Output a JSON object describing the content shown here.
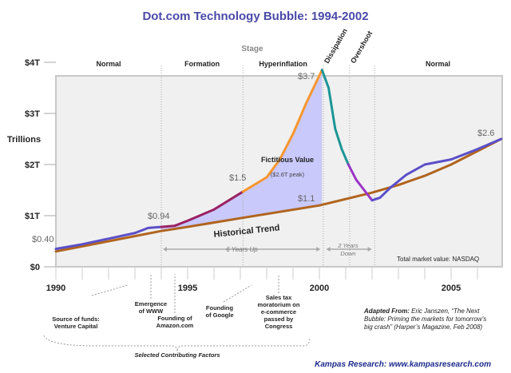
{
  "chart_data": {
    "type": "line",
    "title": "Dot.com Technology Bubble:  1994-2002",
    "ylabel": "Trillions",
    "stage_label": "Stage",
    "ylim": [
      0,
      4
    ],
    "xlim": [
      1990,
      2006.9
    ],
    "y_ticks": [
      {
        "v": 0,
        "label": "$0"
      },
      {
        "v": 1,
        "label": "$1T"
      },
      {
        "v": 2,
        "label": "$2T"
      },
      {
        "v": 3,
        "label": "$3T"
      },
      {
        "v": 4,
        "label": "$4T"
      }
    ],
    "x_ticks": [
      {
        "v": 1990,
        "label": "1990"
      },
      {
        "v": 1995,
        "label": "1995"
      },
      {
        "v": 2000,
        "label": "2000"
      },
      {
        "v": 2005,
        "label": "2005"
      }
    ],
    "stages": [
      {
        "label": "Normal",
        "from": 1990,
        "to": 1994,
        "rotated": false
      },
      {
        "label": "Formation",
        "from": 1994,
        "to": 1997.1,
        "rotated": false
      },
      {
        "label": "Hyperinflation",
        "from": 1997.1,
        "to": 2000.15,
        "rotated": false
      },
      {
        "label": "Dissipation",
        "from": 2000.15,
        "to": 2001.15,
        "rotated": true
      },
      {
        "label": "Overshoot",
        "from": 2001.15,
        "to": 2002.1,
        "rotated": true
      },
      {
        "label": "Normal",
        "from": 2002.1,
        "to": 2006.9,
        "rotated": false
      }
    ],
    "series": [
      {
        "name": "Total market value: NASDAQ",
        "segments": [
          {
            "color": "#5b4fc8",
            "points": [
              [
                1990,
                0.35
              ],
              [
                1991,
                0.44
              ],
              [
                1992,
                0.55
              ],
              [
                1993,
                0.66
              ],
              [
                1993.5,
                0.76
              ],
              [
                1994,
                0.78
              ]
            ]
          },
          {
            "color": "#9b2163",
            "points": [
              [
                1994,
                0.78
              ],
              [
                1994.5,
                0.8
              ],
              [
                1995,
                0.9
              ],
              [
                1996,
                1.12
              ],
              [
                1997.1,
                1.47
              ]
            ]
          },
          {
            "color": "#f7962e",
            "points": [
              [
                1997.1,
                1.47
              ],
              [
                1998,
                1.75
              ],
              [
                1998.5,
                2.1
              ],
              [
                1999,
                2.6
              ],
              [
                1999.5,
                3.2
              ],
              [
                2000.1,
                3.85
              ]
            ]
          },
          {
            "color": "#1b9596",
            "points": [
              [
                2000.1,
                3.85
              ],
              [
                2000.35,
                3.5
              ],
              [
                2000.6,
                2.7
              ],
              [
                2000.85,
                2.3
              ],
              [
                2001.1,
                2.0
              ]
            ]
          },
          {
            "color": "#9a35c6",
            "points": [
              [
                2001.1,
                2.0
              ],
              [
                2001.4,
                1.7
              ],
              [
                2001.7,
                1.5
              ],
              [
                2002,
                1.3
              ]
            ]
          },
          {
            "color": "#5b4fc8",
            "points": [
              [
                2002,
                1.3
              ],
              [
                2002.3,
                1.35
              ],
              [
                2002.7,
                1.55
              ],
              [
                2003.3,
                1.8
              ],
              [
                2004,
                2.0
              ],
              [
                2005,
                2.1
              ],
              [
                2006,
                2.3
              ],
              [
                2006.9,
                2.5
              ]
            ]
          }
        ]
      },
      {
        "name": "Historical Trend",
        "color": "#b0641e",
        "points": [
          [
            1990,
            0.3
          ],
          [
            1992,
            0.5
          ],
          [
            1994,
            0.7
          ],
          [
            1995,
            0.78
          ],
          [
            1997,
            0.95
          ],
          [
            2000,
            1.2
          ],
          [
            2002,
            1.45
          ],
          [
            2003,
            1.6
          ],
          [
            2004,
            1.78
          ],
          [
            2005,
            2.0
          ],
          [
            2006.9,
            2.5
          ]
        ]
      }
    ],
    "fill": {
      "label": "Fictitious Value",
      "sub": "($2.6T peak)",
      "color": "#c9c9fb",
      "from": 1994,
      "to": 2000.1
    },
    "annotations": {
      "v040": "$0.40",
      "v094": "$0.94",
      "v15": "$1.5",
      "v37": "$3.7",
      "v11": "$1.1",
      "v26": "$2.6",
      "trend_label": "Historical Trend",
      "up": "6 Years Up",
      "down_1": "2 Years",
      "down_2": "Down",
      "market": "Total market value: NASDAQ"
    },
    "factors": {
      "vc": [
        "Source of funds:",
        "Venture Capital"
      ],
      "www": [
        "Emergence",
        "of WWW"
      ],
      "amazon": [
        "Founding of",
        "Amazon.com"
      ],
      "google": [
        "Founding",
        "of Google"
      ],
      "tax": [
        "Sales tax",
        "moratorium on",
        "e-commerce",
        "passed by",
        "Congress"
      ],
      "caption": "Selected Contributing Factors"
    },
    "source": {
      "bold": "Adapted From:",
      "lines": [
        "Eric Janszen, “The Next",
        "Bubble: Priming the markets for tomorrow’s",
        "big crash” (Harper’s Magazine, Feb 2008)"
      ]
    },
    "credit": "Kampas Research: www.kampasresearch.com"
  }
}
